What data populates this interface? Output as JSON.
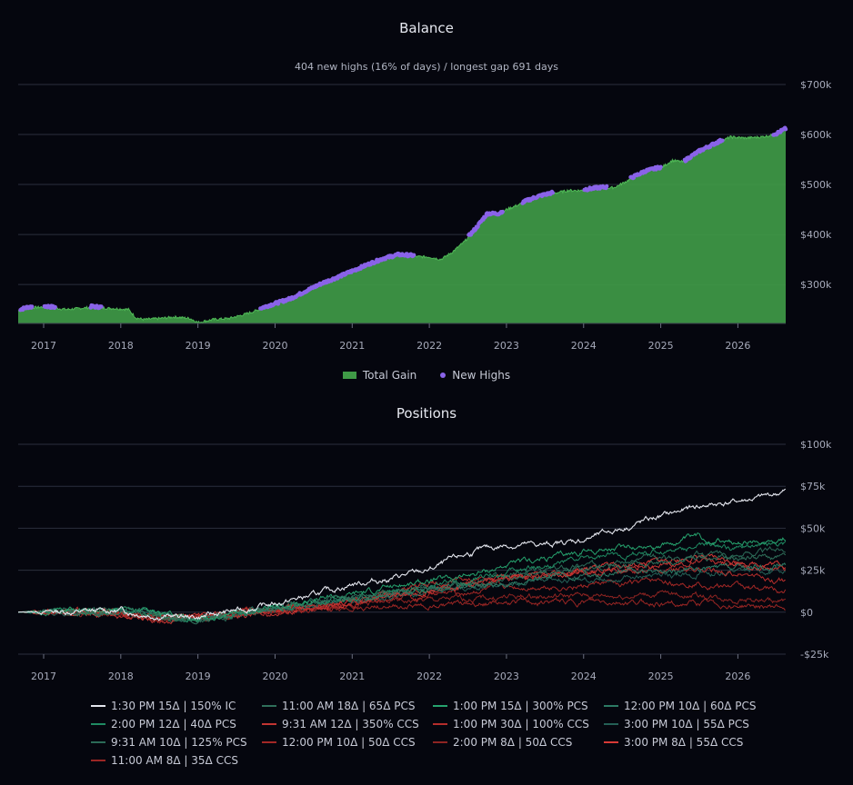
{
  "balance_chart": {
    "title": "Balance",
    "subtitle": "404 new highs (16% of days) / longest gap 691 days",
    "legend": [
      {
        "label": "Total Gain",
        "color": "#3f9a46",
        "kind": "area"
      },
      {
        "label": "New Highs",
        "color": "#8a63e8",
        "kind": "dot"
      }
    ]
  },
  "positions_chart": {
    "title": "Positions"
  },
  "chart_data": [
    {
      "type": "area",
      "title": "Balance",
      "subtitle": "404 new highs (16% of days) / longest gap 691 days",
      "x_tick_labels": [
        "2017",
        "2018",
        "2019",
        "2020",
        "2021",
        "2022",
        "2023",
        "2024",
        "2025",
        "2026"
      ],
      "y_tick_labels": [
        "$300k",
        "$400k",
        "$500k",
        "$600k",
        "$700k"
      ],
      "y_ticks": [
        300000,
        400000,
        500000,
        600000,
        700000
      ],
      "xlim": [
        2016.67,
        2026.62
      ],
      "ylim": [
        222000,
        700000
      ],
      "grid": true,
      "legend_placement": "bottom-center",
      "series": [
        {
          "name": "Total Gain",
          "color": "#3f9a46",
          "x": [
            2016.67,
            2016.8,
            2017.0,
            2017.3,
            2017.6,
            2017.9,
            2018.1,
            2018.2,
            2018.3,
            2018.5,
            2018.7,
            2018.9,
            2019.0,
            2019.2,
            2019.4,
            2019.6,
            2019.8,
            2020.0,
            2020.2,
            2020.4,
            2020.6,
            2020.8,
            2021.0,
            2021.2,
            2021.4,
            2021.6,
            2021.8,
            2022.0,
            2022.15,
            2022.3,
            2022.45,
            2022.6,
            2022.75,
            2022.9,
            2023.0,
            2023.2,
            2023.4,
            2023.6,
            2023.8,
            2024.0,
            2024.2,
            2024.4,
            2024.6,
            2024.8,
            2025.0,
            2025.15,
            2025.3,
            2025.5,
            2025.7,
            2025.9,
            2026.1,
            2026.3,
            2026.5,
            2026.62
          ],
          "y": [
            247000,
            253000,
            255000,
            250000,
            254000,
            252000,
            250000,
            233000,
            230000,
            232000,
            235000,
            232000,
            224000,
            230000,
            232000,
            240000,
            250000,
            260000,
            270000,
            285000,
            300000,
            312000,
            325000,
            338000,
            350000,
            358000,
            356000,
            355000,
            350000,
            365000,
            385000,
            410000,
            440000,
            440000,
            450000,
            462000,
            474000,
            482000,
            488000,
            488000,
            492000,
            494000,
            510000,
            525000,
            533000,
            548000,
            545000,
            565000,
            580000,
            595000,
            593000,
            595000,
            600000,
            610000
          ]
        },
        {
          "name": "New Highs",
          "color": "#8a63e8",
          "x_ranges": [
            [
              2016.7,
              2016.85
            ],
            [
              2017.0,
              2017.15
            ],
            [
              2017.6,
              2017.75
            ],
            [
              2019.8,
              2021.8
            ],
            [
              2022.5,
              2022.95
            ],
            [
              2023.2,
              2023.6
            ],
            [
              2024.0,
              2024.3
            ],
            [
              2024.6,
              2025.0
            ],
            [
              2025.3,
              2025.8
            ],
            [
              2026.45,
              2026.62
            ]
          ]
        }
      ]
    },
    {
      "type": "line",
      "title": "Positions",
      "x_tick_labels": [
        "2017",
        "2018",
        "2019",
        "2020",
        "2021",
        "2022",
        "2023",
        "2024",
        "2025",
        "2026"
      ],
      "y_tick_labels": [
        "-$25k",
        "$0",
        "$25k",
        "$50k",
        "$75k",
        "$100k"
      ],
      "y_ticks": [
        -25000,
        0,
        25000,
        50000,
        75000,
        100000
      ],
      "xlim": [
        2016.67,
        2026.62
      ],
      "ylim": [
        -25000,
        100000
      ],
      "grid": true,
      "legend_placement": "bottom-center",
      "x": [
        2016.67,
        2017.0,
        2017.5,
        2018.0,
        2018.5,
        2019.0,
        2019.5,
        2020.0,
        2020.5,
        2021.0,
        2021.5,
        2022.0,
        2022.5,
        2023.0,
        2023.5,
        2024.0,
        2024.5,
        2025.0,
        2025.5,
        2026.0,
        2026.3,
        2026.62
      ],
      "series": [
        {
          "name": "1:30 PM 15Δ | 150% IC",
          "color": "#e4e6ee",
          "values": [
            0,
            500,
            300,
            1000,
            -2000,
            -3000,
            1000,
            5000,
            10000,
            17000,
            20000,
            25000,
            35000,
            40000,
            40000,
            43000,
            50000,
            57000,
            63000,
            66000,
            68000,
            72000
          ]
        },
        {
          "name": "11:00 AM 18Δ | 65Δ PCS",
          "color": "#2f6f5a",
          "values": [
            0,
            300,
            1000,
            1500,
            -3000,
            -6000,
            -1000,
            2000,
            6000,
            10000,
            13000,
            14000,
            17000,
            20000,
            23000,
            25000,
            27000,
            30000,
            32000,
            32000,
            33000,
            32000
          ]
        },
        {
          "name": "1:00 PM 15Δ | 300% PCS",
          "color": "#26a36e",
          "values": [
            0,
            500,
            1500,
            2000,
            -2000,
            -5000,
            0,
            3000,
            7000,
            11000,
            15000,
            18000,
            22000,
            28000,
            32000,
            36000,
            38000,
            40000,
            45000,
            40000,
            42000,
            45000
          ]
        },
        {
          "name": "12:00 PM 10Δ | 60Δ PCS",
          "color": "#2c7a64",
          "values": [
            0,
            200,
            500,
            1000,
            -1000,
            -4000,
            -1000,
            2000,
            5000,
            8000,
            11000,
            13000,
            16000,
            18000,
            20000,
            22000,
            23000,
            24000,
            25000,
            26000,
            27000,
            28000
          ]
        },
        {
          "name": "2:00 PM 12Δ | 40Δ PCS",
          "color": "#1f8a62",
          "values": [
            0,
            300,
            800,
            1500,
            -2000,
            -5000,
            -500,
            2500,
            6000,
            9000,
            12000,
            14000,
            19000,
            24000,
            28000,
            32000,
            34000,
            36000,
            40000,
            38000,
            40000,
            42000
          ]
        },
        {
          "name": "9:31 AM 12Δ | 350% CCS",
          "color": "#c23532",
          "values": [
            0,
            200,
            300,
            -2000,
            -5000,
            -4000,
            -2000,
            0,
            3000,
            6000,
            10000,
            13000,
            17000,
            20000,
            22000,
            24000,
            26000,
            28000,
            30000,
            28000,
            27000,
            26000
          ]
        },
        {
          "name": "1:00 PM 30Δ | 100% CCS",
          "color": "#b52d2b",
          "values": [
            0,
            100,
            200,
            -1000,
            -3000,
            -3000,
            -1000,
            1000,
            4000,
            8000,
            12000,
            16000,
            19000,
            20000,
            22000,
            23000,
            24000,
            25000,
            26000,
            23000,
            20000,
            18000
          ]
        },
        {
          "name": "3:00 PM 10Δ | 55Δ PCS",
          "color": "#245f55",
          "values": [
            0,
            200,
            600,
            1000,
            -1500,
            -4500,
            -1500,
            1500,
            4000,
            7000,
            9000,
            11000,
            14000,
            17000,
            19000,
            20000,
            21000,
            22000,
            23000,
            24000,
            24000,
            25000
          ]
        },
        {
          "name": "9:31 AM 10Δ | 125% PCS",
          "color": "#2b6a57",
          "values": [
            0,
            300,
            700,
            1200,
            -2500,
            -6000,
            -2000,
            1000,
            5000,
            9000,
            12000,
            14000,
            18000,
            22000,
            25000,
            28000,
            30000,
            32000,
            35000,
            34000,
            36000,
            38000
          ]
        },
        {
          "name": "12:00 PM 10Δ | 50Δ CCS",
          "color": "#a32826",
          "values": [
            0,
            100,
            200,
            -1500,
            -4000,
            -3500,
            -1500,
            500,
            2500,
            5000,
            8000,
            10000,
            12000,
            14000,
            15000,
            16000,
            17000,
            18000,
            17000,
            15000,
            14000,
            12000
          ]
        },
        {
          "name": "2:00 PM 8Δ | 50Δ CCS",
          "color": "#8e2422",
          "values": [
            0,
            100,
            100,
            -1000,
            -3000,
            -2500,
            -1000,
            500,
            2000,
            4000,
            6000,
            7000,
            8000,
            9000,
            9500,
            10000,
            10000,
            11000,
            10000,
            8000,
            7000,
            6000
          ]
        },
        {
          "name": "3:00 PM 8Δ | 55Δ CCS",
          "color": "#d83a36",
          "values": [
            0,
            200,
            300,
            -1200,
            -3500,
            -3000,
            -1200,
            800,
            3000,
            6000,
            9000,
            12000,
            16000,
            20000,
            23000,
            25000,
            27000,
            30000,
            33000,
            30000,
            29000,
            28000
          ]
        },
        {
          "name": "11:00 AM 8Δ | 35Δ CCS",
          "color": "#9a2624",
          "values": [
            0,
            100,
            150,
            -800,
            -2500,
            -2200,
            -800,
            400,
            1500,
            3000,
            4000,
            4500,
            5000,
            5500,
            6000,
            6000,
            6000,
            5500,
            5000,
            4000,
            3500,
            3000
          ]
        }
      ]
    }
  ]
}
